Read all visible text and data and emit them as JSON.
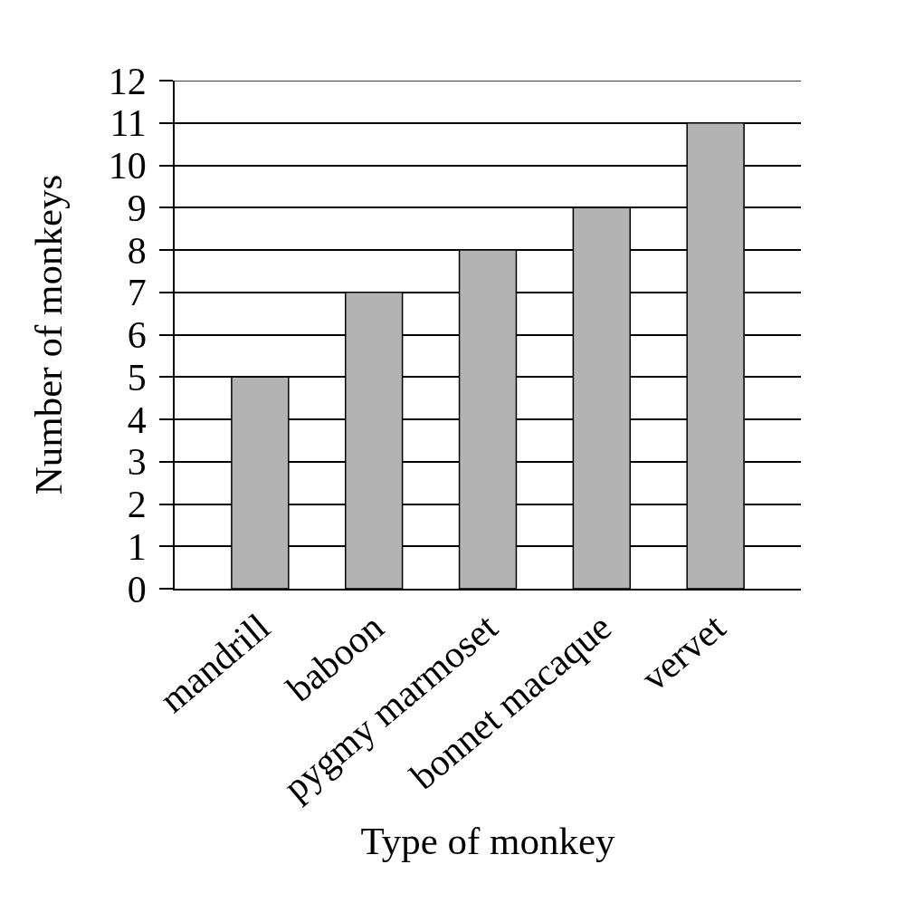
{
  "chart_data": {
    "type": "bar",
    "xlabel": "Type of monkey",
    "ylabel": "Number of monkeys",
    "categories": [
      "mandrill",
      "baboon",
      "pygmy marmoset",
      "bonnet macaque",
      "vervet"
    ],
    "values": [
      5,
      7,
      8,
      9,
      11
    ],
    "color": "#b3b3b3",
    "ylim": [
      0,
      12
    ],
    "yticks": [
      0,
      1,
      2,
      3,
      4,
      5,
      6,
      7,
      8,
      9,
      10,
      11,
      12
    ],
    "grid": "y"
  }
}
